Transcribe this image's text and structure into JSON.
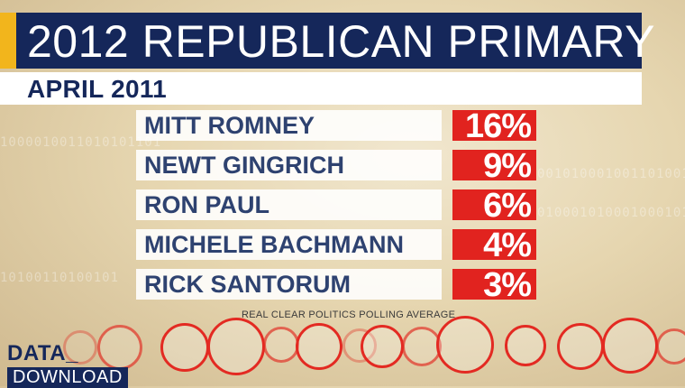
{
  "title": "2012 REPUBLICAN PRIMARY",
  "subtitle": "APRIL 2011",
  "candidates": [
    {
      "name": "MITT ROMNEY",
      "percent": "16%"
    },
    {
      "name": "NEWT GINGRICH",
      "percent": "9%"
    },
    {
      "name": "RON PAUL",
      "percent": "6%"
    },
    {
      "name": "MICHELE BACHMANN",
      "percent": "4%"
    },
    {
      "name": "RICK SANTORUM",
      "percent": "3%"
    }
  ],
  "source": "REAL CLEAR POLITICS POLLING AVERAGE",
  "brand": {
    "top": "DATA_",
    "bottom": "DOWNLOAD"
  },
  "colors": {
    "navy": "#15275a",
    "red": "#e1231f",
    "gold": "#f2b51c"
  },
  "background_icon": "republican-elephant-icon"
}
